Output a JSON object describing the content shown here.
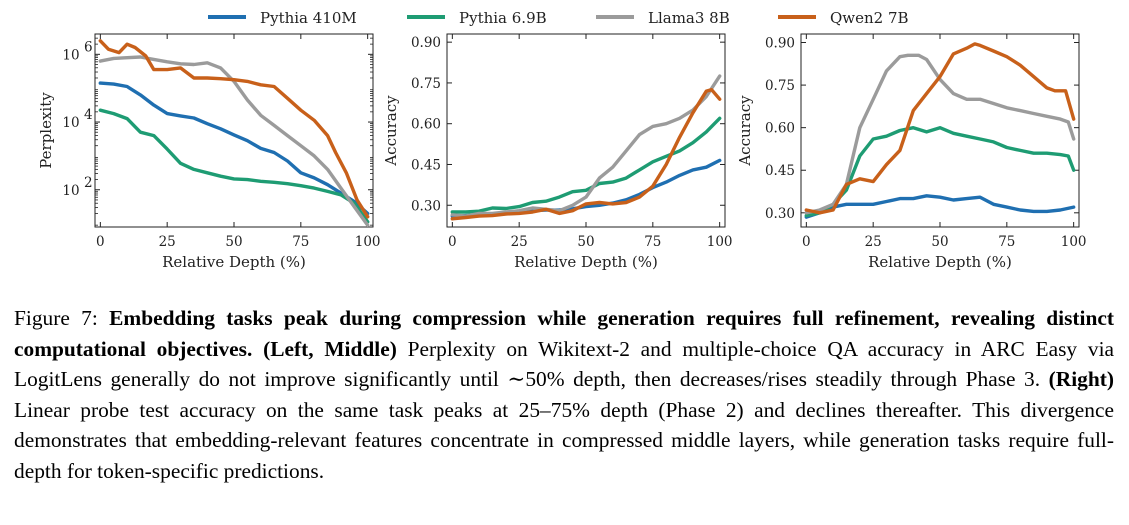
{
  "legend": [
    {
      "name": "Pythia 410M",
      "color": "#1f6fb1"
    },
    {
      "name": "Pythia 6.9B",
      "color": "#1e9c73"
    },
    {
      "name": "Llama3 8B",
      "color": "#9b9b9b"
    },
    {
      "name": "Qwen2 7B",
      "color": "#c8601a"
    }
  ],
  "chart_data": [
    {
      "type": "line",
      "title": "",
      "xlabel": "Relative Depth (%)",
      "ylabel": "Perplexity",
      "yscale": "log",
      "xlim": [
        -2,
        102
      ],
      "ylim_log10": [
        0.9,
        6.6
      ],
      "xticks": [
        0,
        25,
        50,
        75,
        100
      ],
      "yticks": [
        {
          "value": 2,
          "label": "10"
        },
        {
          "value": 4,
          "label": "10"
        },
        {
          "value": 6,
          "label": "10"
        }
      ],
      "ytick_exponents": [
        "2",
        "4",
        "6"
      ],
      "series": [
        {
          "name": "Pythia 410M",
          "x": [
            0,
            5,
            10,
            15,
            20,
            25,
            30,
            35,
            40,
            45,
            50,
            55,
            60,
            65,
            70,
            75,
            80,
            85,
            90,
            95,
            100
          ],
          "y_log10": [
            5.15,
            5.12,
            5.05,
            4.8,
            4.5,
            4.25,
            4.18,
            4.12,
            3.95,
            3.8,
            3.62,
            3.45,
            3.22,
            3.1,
            2.85,
            2.5,
            2.35,
            2.15,
            1.9,
            1.65,
            1.3
          ]
        },
        {
          "name": "Pythia 6.9B",
          "x": [
            0,
            5,
            10,
            15,
            20,
            25,
            30,
            35,
            40,
            45,
            50,
            55,
            60,
            65,
            70,
            75,
            80,
            85,
            90,
            95,
            100
          ],
          "y_log10": [
            4.35,
            4.25,
            4.1,
            3.7,
            3.6,
            3.2,
            2.78,
            2.6,
            2.5,
            2.4,
            2.32,
            2.3,
            2.25,
            2.22,
            2.18,
            2.12,
            2.05,
            1.95,
            1.85,
            1.6,
            1.05
          ]
        },
        {
          "name": "Llama3 8B",
          "x": [
            0,
            5,
            10,
            15,
            20,
            25,
            30,
            35,
            40,
            45,
            50,
            55,
            60,
            65,
            70,
            75,
            80,
            85,
            90,
            95,
            100
          ],
          "y_log10": [
            5.8,
            5.88,
            5.9,
            5.92,
            5.85,
            5.78,
            5.72,
            5.7,
            5.75,
            5.6,
            5.2,
            4.65,
            4.2,
            3.9,
            3.6,
            3.3,
            3.0,
            2.6,
            2.05,
            1.5,
            0.95
          ]
        },
        {
          "name": "Qwen2 7B",
          "x": [
            0,
            3,
            7,
            10,
            13,
            17,
            20,
            25,
            30,
            35,
            40,
            45,
            50,
            55,
            60,
            65,
            70,
            75,
            80,
            85,
            88,
            92,
            96,
            100
          ],
          "y_log10": [
            6.4,
            6.15,
            6.05,
            6.3,
            6.2,
            5.95,
            5.55,
            5.55,
            5.6,
            5.3,
            5.3,
            5.28,
            5.25,
            5.2,
            5.1,
            5.05,
            4.7,
            4.35,
            4.05,
            3.6,
            3.1,
            2.5,
            1.7,
            1.2
          ]
        }
      ]
    },
    {
      "type": "line",
      "title": "",
      "xlabel": "Relative Depth (%)",
      "ylabel": "Accuracy",
      "xlim": [
        -2,
        102
      ],
      "ylim": [
        0.22,
        0.93
      ],
      "xticks": [
        0,
        25,
        50,
        75,
        100
      ],
      "yticks": [
        "0.30",
        "0.45",
        "0.60",
        "0.75",
        "0.90"
      ],
      "series": [
        {
          "name": "Pythia 410M",
          "x": [
            0,
            5,
            10,
            15,
            20,
            25,
            30,
            35,
            40,
            45,
            50,
            55,
            60,
            65,
            70,
            75,
            80,
            85,
            90,
            95,
            100
          ],
          "y": [
            0.26,
            0.262,
            0.265,
            0.268,
            0.27,
            0.275,
            0.28,
            0.282,
            0.283,
            0.287,
            0.295,
            0.3,
            0.308,
            0.32,
            0.34,
            0.365,
            0.385,
            0.41,
            0.43,
            0.44,
            0.465
          ]
        },
        {
          "name": "Pythia 6.9B",
          "x": [
            0,
            5,
            10,
            15,
            20,
            25,
            30,
            35,
            40,
            45,
            50,
            55,
            60,
            65,
            70,
            75,
            80,
            85,
            90,
            95,
            100
          ],
          "y": [
            0.275,
            0.275,
            0.278,
            0.29,
            0.288,
            0.295,
            0.31,
            0.315,
            0.33,
            0.35,
            0.355,
            0.38,
            0.385,
            0.4,
            0.43,
            0.46,
            0.48,
            0.5,
            0.53,
            0.57,
            0.62
          ]
        },
        {
          "name": "Llama3 8B",
          "x": [
            0,
            5,
            10,
            15,
            20,
            25,
            30,
            35,
            40,
            45,
            50,
            55,
            60,
            65,
            70,
            75,
            80,
            85,
            90,
            95,
            100
          ],
          "y": [
            0.265,
            0.26,
            0.27,
            0.27,
            0.275,
            0.28,
            0.29,
            0.285,
            0.28,
            0.3,
            0.33,
            0.4,
            0.44,
            0.5,
            0.56,
            0.59,
            0.6,
            0.62,
            0.65,
            0.7,
            0.775
          ]
        },
        {
          "name": "Qwen2 7B",
          "x": [
            0,
            5,
            10,
            15,
            20,
            25,
            30,
            35,
            40,
            45,
            50,
            55,
            60,
            65,
            70,
            75,
            80,
            85,
            90,
            95,
            97,
            100
          ],
          "y": [
            0.25,
            0.255,
            0.26,
            0.262,
            0.268,
            0.27,
            0.275,
            0.285,
            0.27,
            0.28,
            0.305,
            0.31,
            0.305,
            0.31,
            0.33,
            0.37,
            0.45,
            0.55,
            0.64,
            0.72,
            0.725,
            0.69
          ]
        }
      ]
    },
    {
      "type": "line",
      "title": "",
      "xlabel": "Relative Depth (%)",
      "ylabel": "Accuracy",
      "xlim": [
        -2,
        102
      ],
      "ylim": [
        0.25,
        0.93
      ],
      "xticks": [
        0,
        25,
        50,
        75,
        100
      ],
      "yticks": [
        "0.30",
        "0.45",
        "0.60",
        "0.75",
        "0.90"
      ],
      "series": [
        {
          "name": "Pythia 410M",
          "x": [
            0,
            5,
            10,
            15,
            20,
            25,
            30,
            35,
            40,
            45,
            50,
            55,
            60,
            65,
            70,
            75,
            80,
            85,
            90,
            95,
            100
          ],
          "y": [
            0.285,
            0.3,
            0.32,
            0.33,
            0.33,
            0.33,
            0.34,
            0.35,
            0.35,
            0.36,
            0.355,
            0.345,
            0.35,
            0.355,
            0.33,
            0.32,
            0.31,
            0.305,
            0.305,
            0.31,
            0.32
          ]
        },
        {
          "name": "Pythia 6.9B",
          "x": [
            0,
            5,
            10,
            15,
            20,
            25,
            30,
            35,
            40,
            45,
            50,
            55,
            60,
            65,
            70,
            75,
            80,
            85,
            90,
            95,
            98,
            100
          ],
          "y": [
            0.29,
            0.3,
            0.33,
            0.38,
            0.5,
            0.56,
            0.57,
            0.59,
            0.6,
            0.585,
            0.6,
            0.58,
            0.57,
            0.56,
            0.55,
            0.53,
            0.52,
            0.51,
            0.51,
            0.505,
            0.5,
            0.45
          ]
        },
        {
          "name": "Llama3 8B",
          "x": [
            0,
            5,
            10,
            15,
            20,
            25,
            30,
            35,
            38,
            42,
            45,
            50,
            55,
            60,
            65,
            70,
            75,
            80,
            85,
            90,
            95,
            98,
            100
          ],
          "y": [
            0.3,
            0.31,
            0.33,
            0.4,
            0.6,
            0.7,
            0.8,
            0.85,
            0.855,
            0.855,
            0.84,
            0.77,
            0.72,
            0.7,
            0.7,
            0.685,
            0.67,
            0.66,
            0.65,
            0.64,
            0.63,
            0.62,
            0.56
          ]
        },
        {
          "name": "Qwen2 7B",
          "x": [
            0,
            5,
            10,
            15,
            20,
            25,
            30,
            35,
            40,
            45,
            50,
            55,
            60,
            63,
            65,
            70,
            75,
            80,
            85,
            90,
            93,
            97,
            100
          ],
          "y": [
            0.31,
            0.3,
            0.31,
            0.4,
            0.42,
            0.41,
            0.47,
            0.52,
            0.66,
            0.72,
            0.78,
            0.86,
            0.88,
            0.895,
            0.89,
            0.87,
            0.85,
            0.82,
            0.78,
            0.74,
            0.73,
            0.73,
            0.63
          ]
        }
      ]
    }
  ],
  "caption": {
    "label": "Figure 7:",
    "bold_lead": "Embedding tasks peak during compression while generation requires full refinement, revealing distinct computational objectives.",
    "left_middle_label": "(Left, Middle)",
    "left_middle_text": "Perplexity on Wikitext-2 and multiple-choice QA accuracy in ARC Easy via LogitLens generally do not improve significantly until ∼50% depth, then decreases/rises steadily through Phase 3.",
    "right_label": "(Right)",
    "right_text": "Linear probe test accuracy on the same task peaks at 25–75% depth (Phase 2) and declines thereafter. This divergence demonstrates that embedding-relevant features concentrate in compressed middle layers, while generation tasks require full-depth for token-specific predictions."
  }
}
